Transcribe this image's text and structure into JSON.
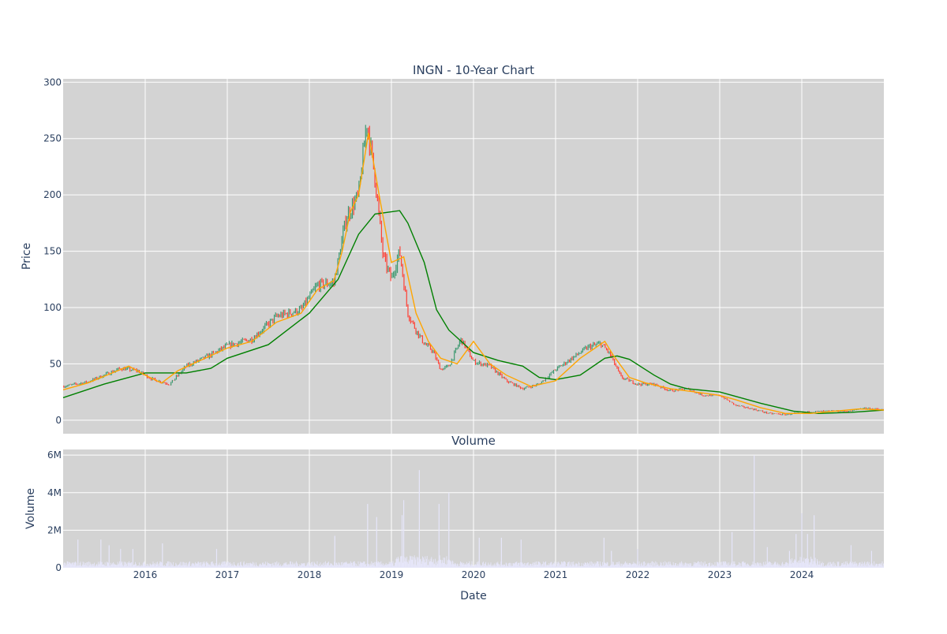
{
  "chart_data": [
    {
      "type": "candlestick",
      "title": "INGN - 10-Year Chart",
      "ylabel": "Price",
      "ylim": [
        -12,
        303
      ],
      "yticks": [
        0,
        50,
        100,
        150,
        200,
        250,
        300
      ],
      "xlim": [
        2015.0,
        2025.0
      ],
      "xticks": [
        "2016",
        "2017",
        "2018",
        "2019",
        "2020",
        "2021",
        "2022",
        "2023",
        "2024"
      ],
      "grid": true,
      "background": "#d3d3d3",
      "colors": {
        "up": "#3d9970",
        "down": "#ff4136",
        "ma_short": "#ffa500",
        "ma_long": "#008000"
      },
      "price_anchors": {
        "x": [
          2015.0,
          2015.3,
          2015.5,
          2015.7,
          2015.9,
          2016.1,
          2016.3,
          2016.5,
          2016.8,
          2017.0,
          2017.3,
          2017.6,
          2017.9,
          2018.1,
          2018.3,
          2018.45,
          2018.6,
          2018.7,
          2018.8,
          2018.9,
          2019.0,
          2019.1,
          2019.2,
          2019.3,
          2019.4,
          2019.5,
          2019.6,
          2019.7,
          2019.85,
          2020.0,
          2020.2,
          2020.4,
          2020.6,
          2020.8,
          2021.0,
          2021.2,
          2021.4,
          2021.55,
          2021.65,
          2021.8,
          2022.0,
          2022.2,
          2022.4,
          2022.6,
          2022.8,
          2023.0,
          2023.2,
          2023.4,
          2023.6,
          2023.8,
          2024.0,
          2024.3,
          2024.6,
          2024.75,
          2025.0
        ],
        "y": [
          30,
          34,
          40,
          46,
          44,
          36,
          32,
          48,
          58,
          66,
          72,
          92,
          98,
          120,
          122,
          180,
          200,
          265,
          215,
          145,
          125,
          150,
          95,
          80,
          68,
          62,
          45,
          48,
          72,
          52,
          48,
          35,
          28,
          32,
          45,
          55,
          65,
          68,
          60,
          38,
          32,
          32,
          26,
          28,
          22,
          22,
          13,
          10,
          6,
          5,
          7,
          8,
          8,
          11,
          9
        ]
      },
      "ma_short": {
        "x": [
          2015.0,
          2015.3,
          2015.6,
          2015.8,
          2016.0,
          2016.2,
          2016.4,
          2016.7,
          2017.0,
          2017.3,
          2017.6,
          2017.9,
          2018.1,
          2018.3,
          2018.4,
          2018.5,
          2018.6,
          2018.72,
          2018.85,
          2019.0,
          2019.15,
          2019.3,
          2019.45,
          2019.6,
          2019.8,
          2020.0,
          2020.2,
          2020.4,
          2020.7,
          2021.0,
          2021.3,
          2021.6,
          2021.7,
          2021.9,
          2022.1,
          2022.4,
          2022.7,
          2023.0,
          2023.2,
          2023.5,
          2023.8,
          2024.1,
          2024.4,
          2024.7,
          2025.0
        ],
        "y": [
          27,
          33,
          42,
          48,
          40,
          33,
          44,
          54,
          64,
          70,
          87,
          95,
          116,
          124,
          150,
          185,
          200,
          255,
          200,
          140,
          145,
          95,
          70,
          55,
          50,
          70,
          50,
          40,
          30,
          35,
          55,
          70,
          58,
          38,
          33,
          28,
          25,
          22,
          18,
          11,
          6,
          6,
          8,
          10,
          9
        ]
      },
      "ma_long": {
        "x": [
          2015.0,
          2015.5,
          2016.0,
          2016.5,
          2016.8,
          2017.0,
          2017.5,
          2018.0,
          2018.35,
          2018.6,
          2018.8,
          2019.0,
          2019.1,
          2019.2,
          2019.4,
          2019.55,
          2019.7,
          2020.0,
          2020.3,
          2020.6,
          2020.8,
          2021.0,
          2021.3,
          2021.6,
          2021.75,
          2021.9,
          2022.2,
          2022.4,
          2022.6,
          2023.0,
          2023.5,
          2023.9,
          2024.2,
          2024.6,
          2025.0
        ],
        "y": [
          20,
          32,
          42,
          42,
          46,
          55,
          67,
          95,
          125,
          165,
          183,
          185,
          186,
          175,
          140,
          98,
          80,
          60,
          53,
          48,
          38,
          36,
          40,
          55,
          57,
          54,
          40,
          32,
          28,
          25,
          15,
          8,
          6,
          7,
          9
        ]
      }
    },
    {
      "type": "bar",
      "title": "Volume",
      "xlabel": "Date",
      "ylabel": "Volume",
      "ylim": [
        0,
        6300000
      ],
      "yticks": [
        0,
        2000000,
        4000000,
        6000000
      ],
      "yticklabels": [
        "0",
        "2M",
        "4M",
        "6M"
      ],
      "xlim": [
        2015.0,
        2025.0
      ],
      "xticks": [
        "2016",
        "2017",
        "2018",
        "2019",
        "2020",
        "2021",
        "2022",
        "2023",
        "2024"
      ],
      "grid": true,
      "background": "#d3d3d3",
      "bar_color": "#e6e6fa",
      "baseline_volume": 200000,
      "spikes": {
        "x": [
          2015.18,
          2015.46,
          2015.56,
          2015.7,
          2015.85,
          2016.21,
          2016.87,
          2018.31,
          2018.71,
          2018.82,
          2019.13,
          2019.15,
          2019.34,
          2019.58,
          2019.7,
          2020.07,
          2020.34,
          2020.58,
          2021.59,
          2021.68,
          2022.0,
          2023.15,
          2023.42,
          2023.58,
          2023.85,
          2023.93,
          2024.0,
          2024.07,
          2024.15,
          2024.6,
          2024.85
        ],
        "y": [
          1500000,
          1500000,
          1200000,
          1000000,
          1000000,
          1300000,
          1000000,
          1700000,
          3400000,
          2700000,
          2800000,
          3600000,
          5200000,
          3400000,
          4000000,
          1600000,
          1600000,
          1500000,
          1600000,
          900000,
          1000000,
          1900000,
          6000000,
          1100000,
          900000,
          1800000,
          2900000,
          1800000,
          2800000,
          1200000,
          900000
        ]
      }
    }
  ]
}
